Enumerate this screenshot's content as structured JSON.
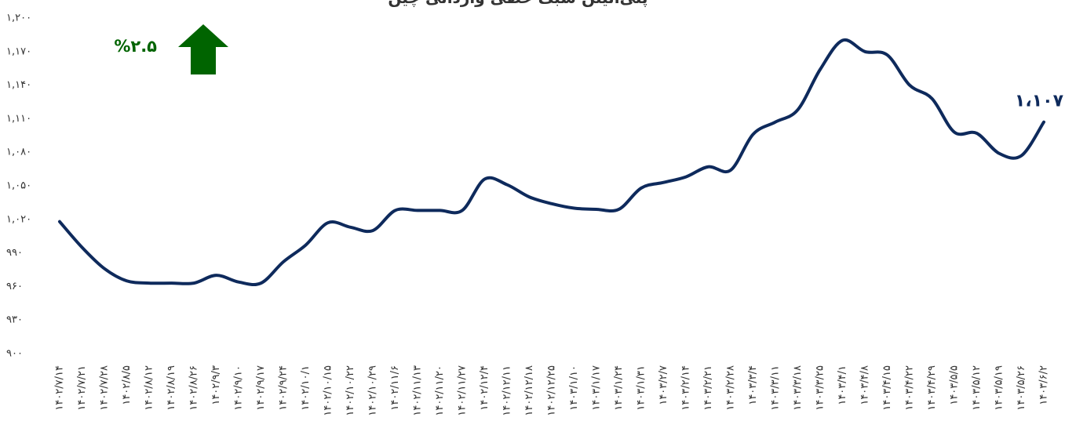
{
  "chart_data": {
    "type": "line",
    "title": "پلی‌اتیلن سبک خطی وارداتی چین",
    "annotation": "%۲.۵",
    "categories": [
      "۱۴۰۲/۷/۱۴",
      "۱۴۰۲/۷/۲۱",
      "۱۴۰۲/۷/۲۸",
      "۱۴۰۲/۸/۵",
      "۱۴۰۲/۸/۱۲",
      "۱۴۰۲/۸/۱۹",
      "۱۴۰۲/۸/۲۶",
      "۱۴۰۲/۹/۳",
      "۱۴۰۲/۹/۱۰",
      "۱۴۰۲/۹/۱۷",
      "۱۴۰۲/۹/۲۴",
      "۱۴۰۲/۱۰/۱",
      "۱۴۰۲/۱۰/۱۵",
      "۱۴۰۲/۱۰/۲۲",
      "۱۴۰۲/۱۰/۲۹",
      "۱۴۰۲/۱۱/۶",
      "۱۴۰۲/۱۱/۱۳",
      "۱۴۰۲/۱۱/۲۰",
      "۱۴۰۲/۱۱/۲۷",
      "۱۴۰۲/۱۲/۴",
      "۱۴۰۲/۱۲/۱۱",
      "۱۴۰۲/۱۲/۱۸",
      "۱۴۰۲/۱۲/۲۵",
      "۱۴۰۳/۱/۱۰",
      "۱۴۰۳/۱/۱۷",
      "۱۴۰۳/۱/۲۴",
      "۱۴۰۳/۱/۳۱",
      "۱۴۰۳/۲/۷",
      "۱۴۰۳/۲/۱۴",
      "۱۴۰۳/۲/۲۱",
      "۱۴۰۳/۲/۲۸",
      "۱۴۰۳/۳/۴",
      "۱۴۰۳/۳/۱۱",
      "۱۴۰۳/۳/۱۸",
      "۱۴۰۳/۳/۲۵",
      "۱۴۰۳/۴/۱",
      "۱۴۰۳/۴/۸",
      "۱۴۰۳/۴/۱۵",
      "۱۴۰۳/۴/۲۲",
      "۱۴۰۳/۴/۲۹",
      "۱۴۰۳/۵/۵",
      "۱۴۰۳/۵/۱۲",
      "۱۴۰۳/۵/۱۹",
      "۱۴۰۳/۵/۲۶",
      "۱۴۰۳/۶/۲"
    ],
    "series": [
      {
        "name": "پلی‌اتیلن سبک خطی وارداتی چین",
        "color": "#0e2a5c",
        "values": [
          1018,
          995,
          976,
          965,
          963,
          963,
          963,
          970,
          964,
          963,
          982,
          997,
          1017,
          1013,
          1010,
          1028,
          1028,
          1028,
          1028,
          1056,
          1051,
          1040,
          1034,
          1030,
          1029,
          1029,
          1048,
          1053,
          1058,
          1067,
          1064,
          1096,
          1107,
          1118,
          1154,
          1180,
          1170,
          1167,
          1140,
          1128,
          1098,
          1097,
          1079,
          1077,
          1107
        ],
        "value_labels": [
          null,
          null,
          null,
          null,
          null,
          null,
          null,
          null,
          null,
          null,
          null,
          null,
          null,
          null,
          null,
          null,
          null,
          null,
          null,
          null,
          null,
          null,
          null,
          null,
          null,
          null,
          null,
          null,
          null,
          null,
          null,
          null,
          null,
          null,
          null,
          null,
          null,
          null,
          null,
          null,
          null,
          null,
          null,
          null,
          "۱،۱۰۷"
        ]
      }
    ],
    "ylim": [
      900,
      1200
    ],
    "yticks": [
      {
        "value": 900,
        "label": "۹۰۰"
      },
      {
        "value": 930,
        "label": "۹۳۰"
      },
      {
        "value": 960,
        "label": "۹۶۰"
      },
      {
        "value": 990,
        "label": "۹۹۰"
      },
      {
        "value": 1020,
        "label": "۱,۰۲۰"
      },
      {
        "value": 1050,
        "label": "۱,۰۵۰"
      },
      {
        "value": 1080,
        "label": "۱,۰۸۰"
      },
      {
        "value": 1110,
        "label": "۱,۱۱۰"
      },
      {
        "value": 1140,
        "label": "۱,۱۴۰"
      },
      {
        "value": 1170,
        "label": "۱,۱۷۰"
      },
      {
        "value": 1200,
        "label": "۱,۲۰۰"
      }
    ],
    "grid": false,
    "annotation_color": "#006400"
  }
}
